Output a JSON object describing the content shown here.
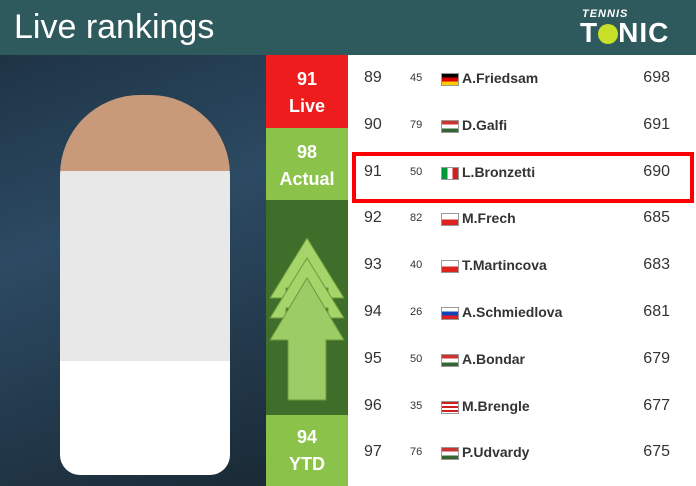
{
  "header": {
    "title": "Live rankings",
    "logo_top": "TENNIS",
    "logo_bottom": "TONIC"
  },
  "player_box": {
    "live_rank": "91",
    "live_label": "Live",
    "actual_rank": "98",
    "actual_label": "Actual",
    "ytd_rank": "94",
    "ytd_label": "YTD",
    "trend": "up",
    "colors": {
      "live": "#ee1c1c",
      "actual": "#8bc34a",
      "arrow_bg": "#3e6e2a"
    }
  },
  "rankings": [
    {
      "rank": "89",
      "change": "45",
      "flag": "germany",
      "name": "A.Friedsam",
      "points": "698"
    },
    {
      "rank": "90",
      "change": "79",
      "flag": "hungary",
      "name": "D.Galfi",
      "points": "691"
    },
    {
      "rank": "91",
      "change": "50",
      "flag": "italy",
      "name": "L.Bronzetti",
      "points": "690",
      "highlighted": true
    },
    {
      "rank": "92",
      "change": "82",
      "flag": "poland",
      "name": "M.Frech",
      "points": "685"
    },
    {
      "rank": "93",
      "change": "40",
      "flag": "czech-republic",
      "name": "T.Martincova",
      "points": "683"
    },
    {
      "rank": "94",
      "change": "26",
      "flag": "slovakia",
      "name": "A.Schmiedlova",
      "points": "681"
    },
    {
      "rank": "95",
      "change": "50",
      "flag": "hungary",
      "name": "A.Bondar",
      "points": "679"
    },
    {
      "rank": "96",
      "change": "35",
      "flag": "usa",
      "name": "M.Brengle",
      "points": "677"
    },
    {
      "rank": "97",
      "change": "76",
      "flag": "hungary",
      "name": "P.Udvardy",
      "points": "675"
    }
  ]
}
